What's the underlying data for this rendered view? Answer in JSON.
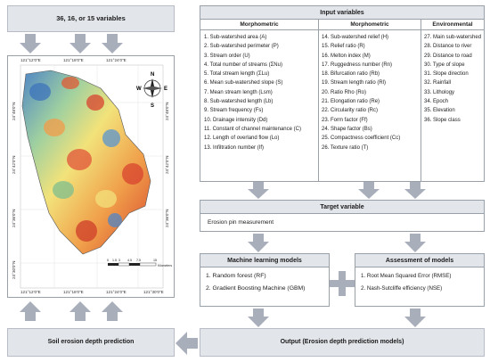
{
  "top_left_label": "36, 16, or 15 variables",
  "input": {
    "title": "Input variables",
    "columns": [
      {
        "header": "Morphometric",
        "items": [
          "1. Sub-watershed area (A)",
          "2. Sub-watershed perimeter (P)",
          "3. Stream order (U)",
          "4. Total number of streams (ΣNu)",
          "5. Total stream length (ΣLu)",
          "6. Mean sub-watershed slope (S)",
          "7. Mean stream length (Lsm)",
          "8. Sub-watershed length (Lb)",
          "9. Stream frequency (Fs)",
          "10. Drainage intensity (Dd)",
          "11. Constant of channel maintenance (C)",
          "12. Length of overland flow (Lo)",
          "13. Infiltration number (If)"
        ]
      },
      {
        "header": "Morphometric",
        "items": [
          "14. Sub-watershed relief (H)",
          "15. Relief ratio (R)",
          "16. Melton index (M)",
          "17. Ruggedness number (Rn)",
          "18. Bifurcation ratio (Rb)",
          "19. Stream length ratio (Rl)",
          "20. Ratio Rho (Ro)",
          "21. Elongation ratio (Re)",
          "22. Circularity ratio (Rc)",
          "23. Form factor (Ff)",
          "24. Shape factor (Bs)",
          "25. Compactness coefficient (Cc)",
          "26. Texture ratio (T)"
        ]
      },
      {
        "header": "Environmental",
        "items": [
          "27. Main sub-watershed",
          "28. Distance to river",
          "29. Distance to road",
          "30. Type of slope",
          "31. Slope direction",
          "32. Rainfall",
          "33. Lithology",
          "34. Epoch",
          "35. Elevation",
          "36. Slope class"
        ]
      }
    ]
  },
  "target": {
    "title": "Target variable",
    "text": "Erosion pin measurement"
  },
  "ml": {
    "title": "Machine learning models",
    "items": [
      "1. Random forest (RF)",
      "2. Gradient Boosting Machine (GBM)"
    ]
  },
  "assess": {
    "title": "Assessment of models",
    "items": [
      "1. Root Mean Squared Error (RMSE)",
      "2. Nash-Sutcliffe efficiency (NSE)"
    ]
  },
  "output": "Output (Erosion depth prediction models)",
  "soil": "Soil erosion depth prediction",
  "map": {
    "lon_ticks": [
      "121°12'0\"E",
      "121°18'0\"E",
      "121°24'0\"E",
      "121°30'0\"E"
    ],
    "lat_ticks": [
      "24°48'0\"N",
      "24°42'0\"N",
      "24°36'0\"N",
      "24°30'0\"N"
    ],
    "compass": {
      "n": "N",
      "s": "S",
      "e": "E",
      "w": "W"
    },
    "scale": {
      "labels": [
        "0",
        "1.5",
        "3",
        "4.5",
        "7.5",
        "15"
      ],
      "unit": "Kilometers"
    }
  },
  "colors": {
    "box_fill": "#e2e5ea",
    "arrow": "#a8afbb",
    "border": "#9aa0a8"
  }
}
